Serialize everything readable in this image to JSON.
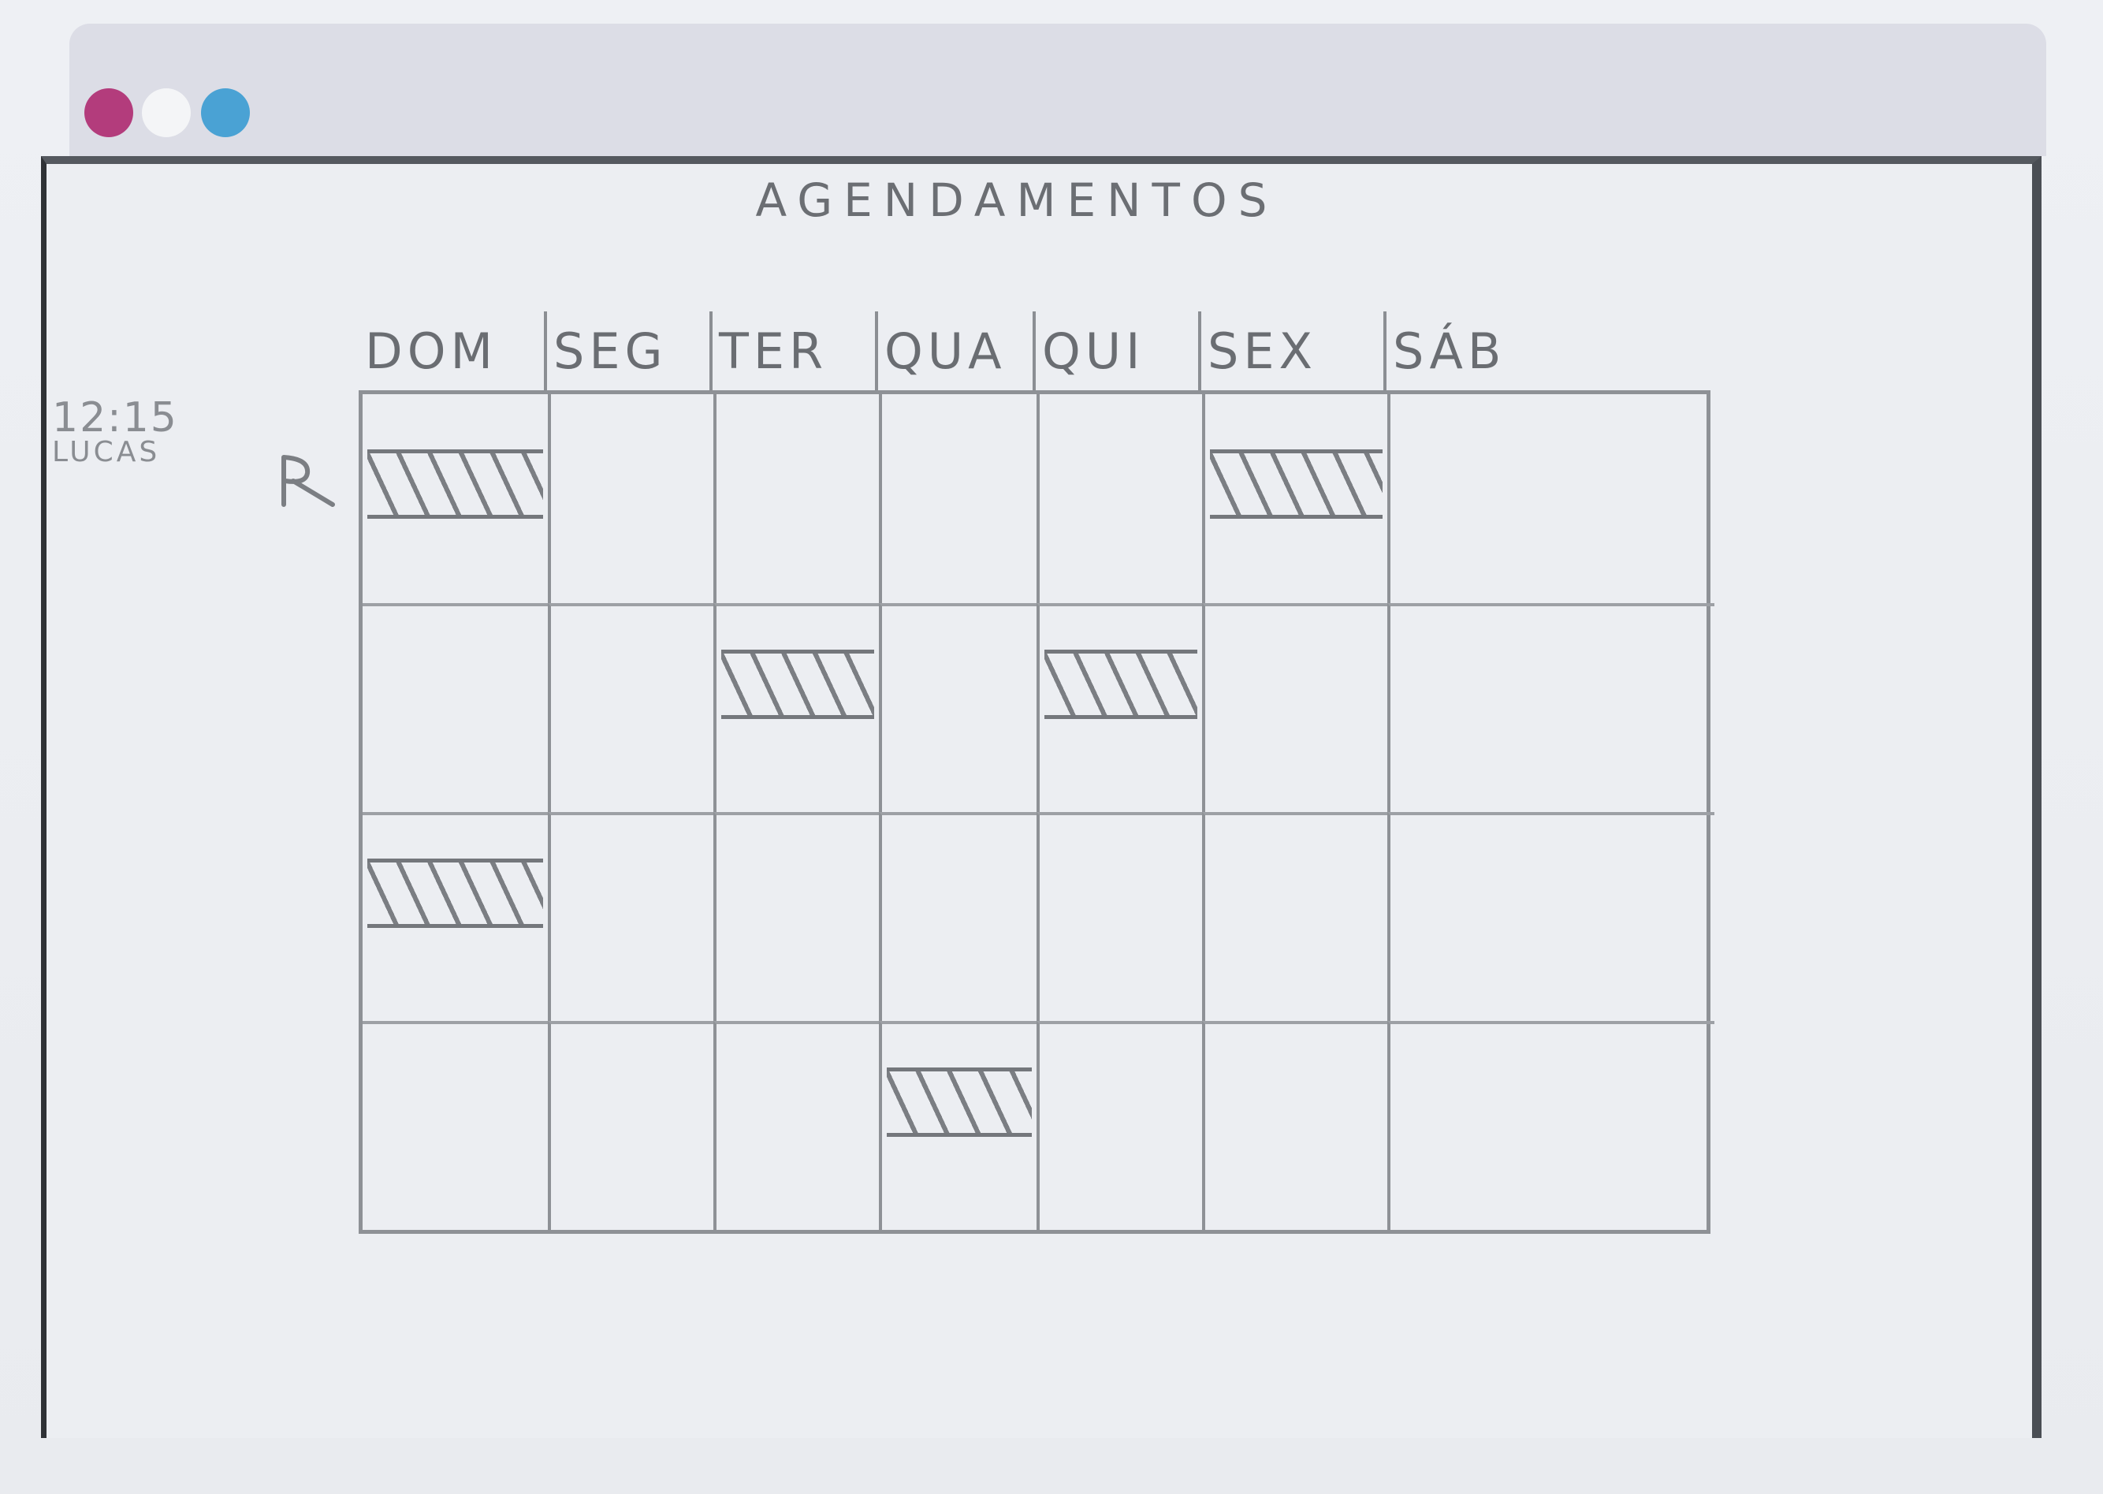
{
  "window": {
    "controls": [
      {
        "name": "close",
        "color": "#b33c7c"
      },
      {
        "name": "minimize",
        "color": "#f4f5f7"
      },
      {
        "name": "maximize",
        "color": "#4aa2d4"
      }
    ]
  },
  "page": {
    "title": "AGENDAMENTOS"
  },
  "side_annotation": {
    "time": "12:15",
    "name": "LUCAS"
  },
  "calendar": {
    "days": [
      "DOM",
      "SEG",
      "TER",
      "QUA",
      "QUI",
      "SEX",
      "SÁB"
    ],
    "rows": 4,
    "booked": [
      {
        "day": 0,
        "row": 0
      },
      {
        "day": 5,
        "row": 0
      },
      {
        "day": 2,
        "row": 1
      },
      {
        "day": 4,
        "row": 1
      },
      {
        "day": 0,
        "row": 2
      },
      {
        "day": 3,
        "row": 3
      }
    ]
  }
}
